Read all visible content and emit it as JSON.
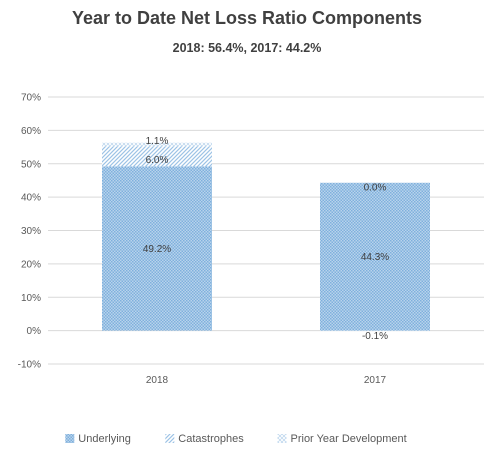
{
  "chart_data": {
    "type": "bar",
    "stacked": true,
    "title": "Year to Date Net Loss Ratio Components",
    "subtitle": "2018: 56.4%, 2017: 44.2%",
    "xlabel": "",
    "ylabel": "",
    "categories": [
      "2018",
      "2017"
    ],
    "ylim": [
      -10,
      70
    ],
    "yticks": [
      -10,
      0,
      10,
      20,
      30,
      40,
      50,
      60,
      70
    ],
    "ytick_labels": [
      "-10%",
      "0%",
      "10%",
      "20%",
      "30%",
      "40%",
      "50%",
      "60%",
      "70%"
    ],
    "grid": true,
    "legend_position": "bottom",
    "series": [
      {
        "name": "Underlying",
        "values": [
          49.2,
          44.3
        ],
        "labels": [
          "49.2%",
          "44.3%"
        ],
        "color": "#9dc3e6",
        "pattern": "dots"
      },
      {
        "name": "Catastrophes",
        "values": [
          6.0,
          0.0
        ],
        "labels": [
          "6.0%",
          "0.0%"
        ],
        "color": "#9dc3e6",
        "pattern": "diagonal"
      },
      {
        "name": "Prior Year Development",
        "values": [
          1.1,
          -0.1
        ],
        "labels": [
          "1.1%",
          "-0.1%"
        ],
        "color": "#9dc3e6",
        "pattern": "crosshatch"
      }
    ]
  }
}
